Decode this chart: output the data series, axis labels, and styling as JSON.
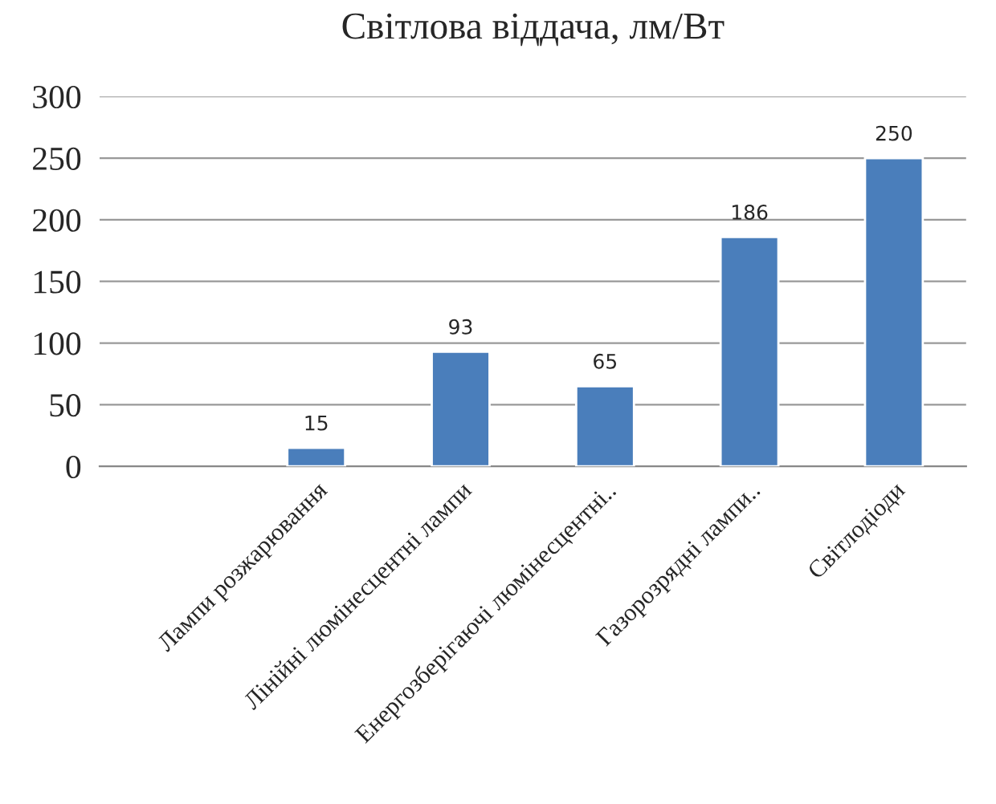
{
  "chart_data": {
    "type": "bar",
    "title": "Світлова віддача, лм/Вт",
    "categories": [
      null,
      "Лампи розжарювання",
      "Лінійні люмінесцентні лампи",
      "Енергозберігаючі люмінесцентні..",
      "Газорозрядні лампи..",
      "Світлодіоди"
    ],
    "values": [
      null,
      15,
      93,
      65,
      186,
      250
    ],
    "color": "#4a7ebb",
    "ylim": [
      0,
      300
    ],
    "yticks": [
      0,
      50,
      100,
      150,
      200,
      250,
      300
    ],
    "grid": "y",
    "data_labels": true
  }
}
